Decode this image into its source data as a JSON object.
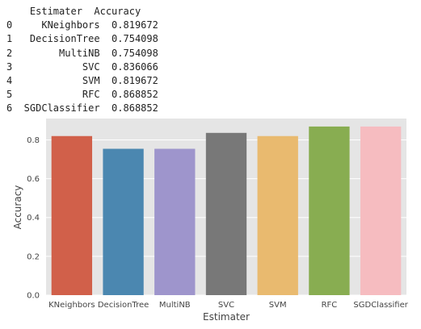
{
  "table": {
    "header": "    Estimater  Accuracy",
    "rows": [
      "0     KNeighbors  0.819672",
      "1   DecisionTree  0.754098",
      "2        MultiNB  0.754098",
      "3            SVC  0.836066",
      "4            SVM  0.819672",
      "5            RFC  0.868852",
      "6  SGDClassifier  0.868852"
    ]
  },
  "chart_data": {
    "type": "bar",
    "categories": [
      "KNeighbors",
      "DecisionTree",
      "MultiNB",
      "SVC",
      "SVM",
      "RFC",
      "SGDClassifier"
    ],
    "values": [
      0.819672,
      0.754098,
      0.754098,
      0.836066,
      0.819672,
      0.868852,
      0.868852
    ],
    "colors": [
      "#d1604a",
      "#4b87b0",
      "#9e95cc",
      "#787878",
      "#e9ba6f",
      "#88ad51",
      "#f6bcc0"
    ],
    "xlabel": "Estimater",
    "ylabel": "Accuracy",
    "ylim": [
      0,
      0.91
    ],
    "yticks": [
      "0.0",
      "0.2",
      "0.4",
      "0.6",
      "0.8"
    ],
    "background": "#e5e5e5",
    "grid": true
  }
}
